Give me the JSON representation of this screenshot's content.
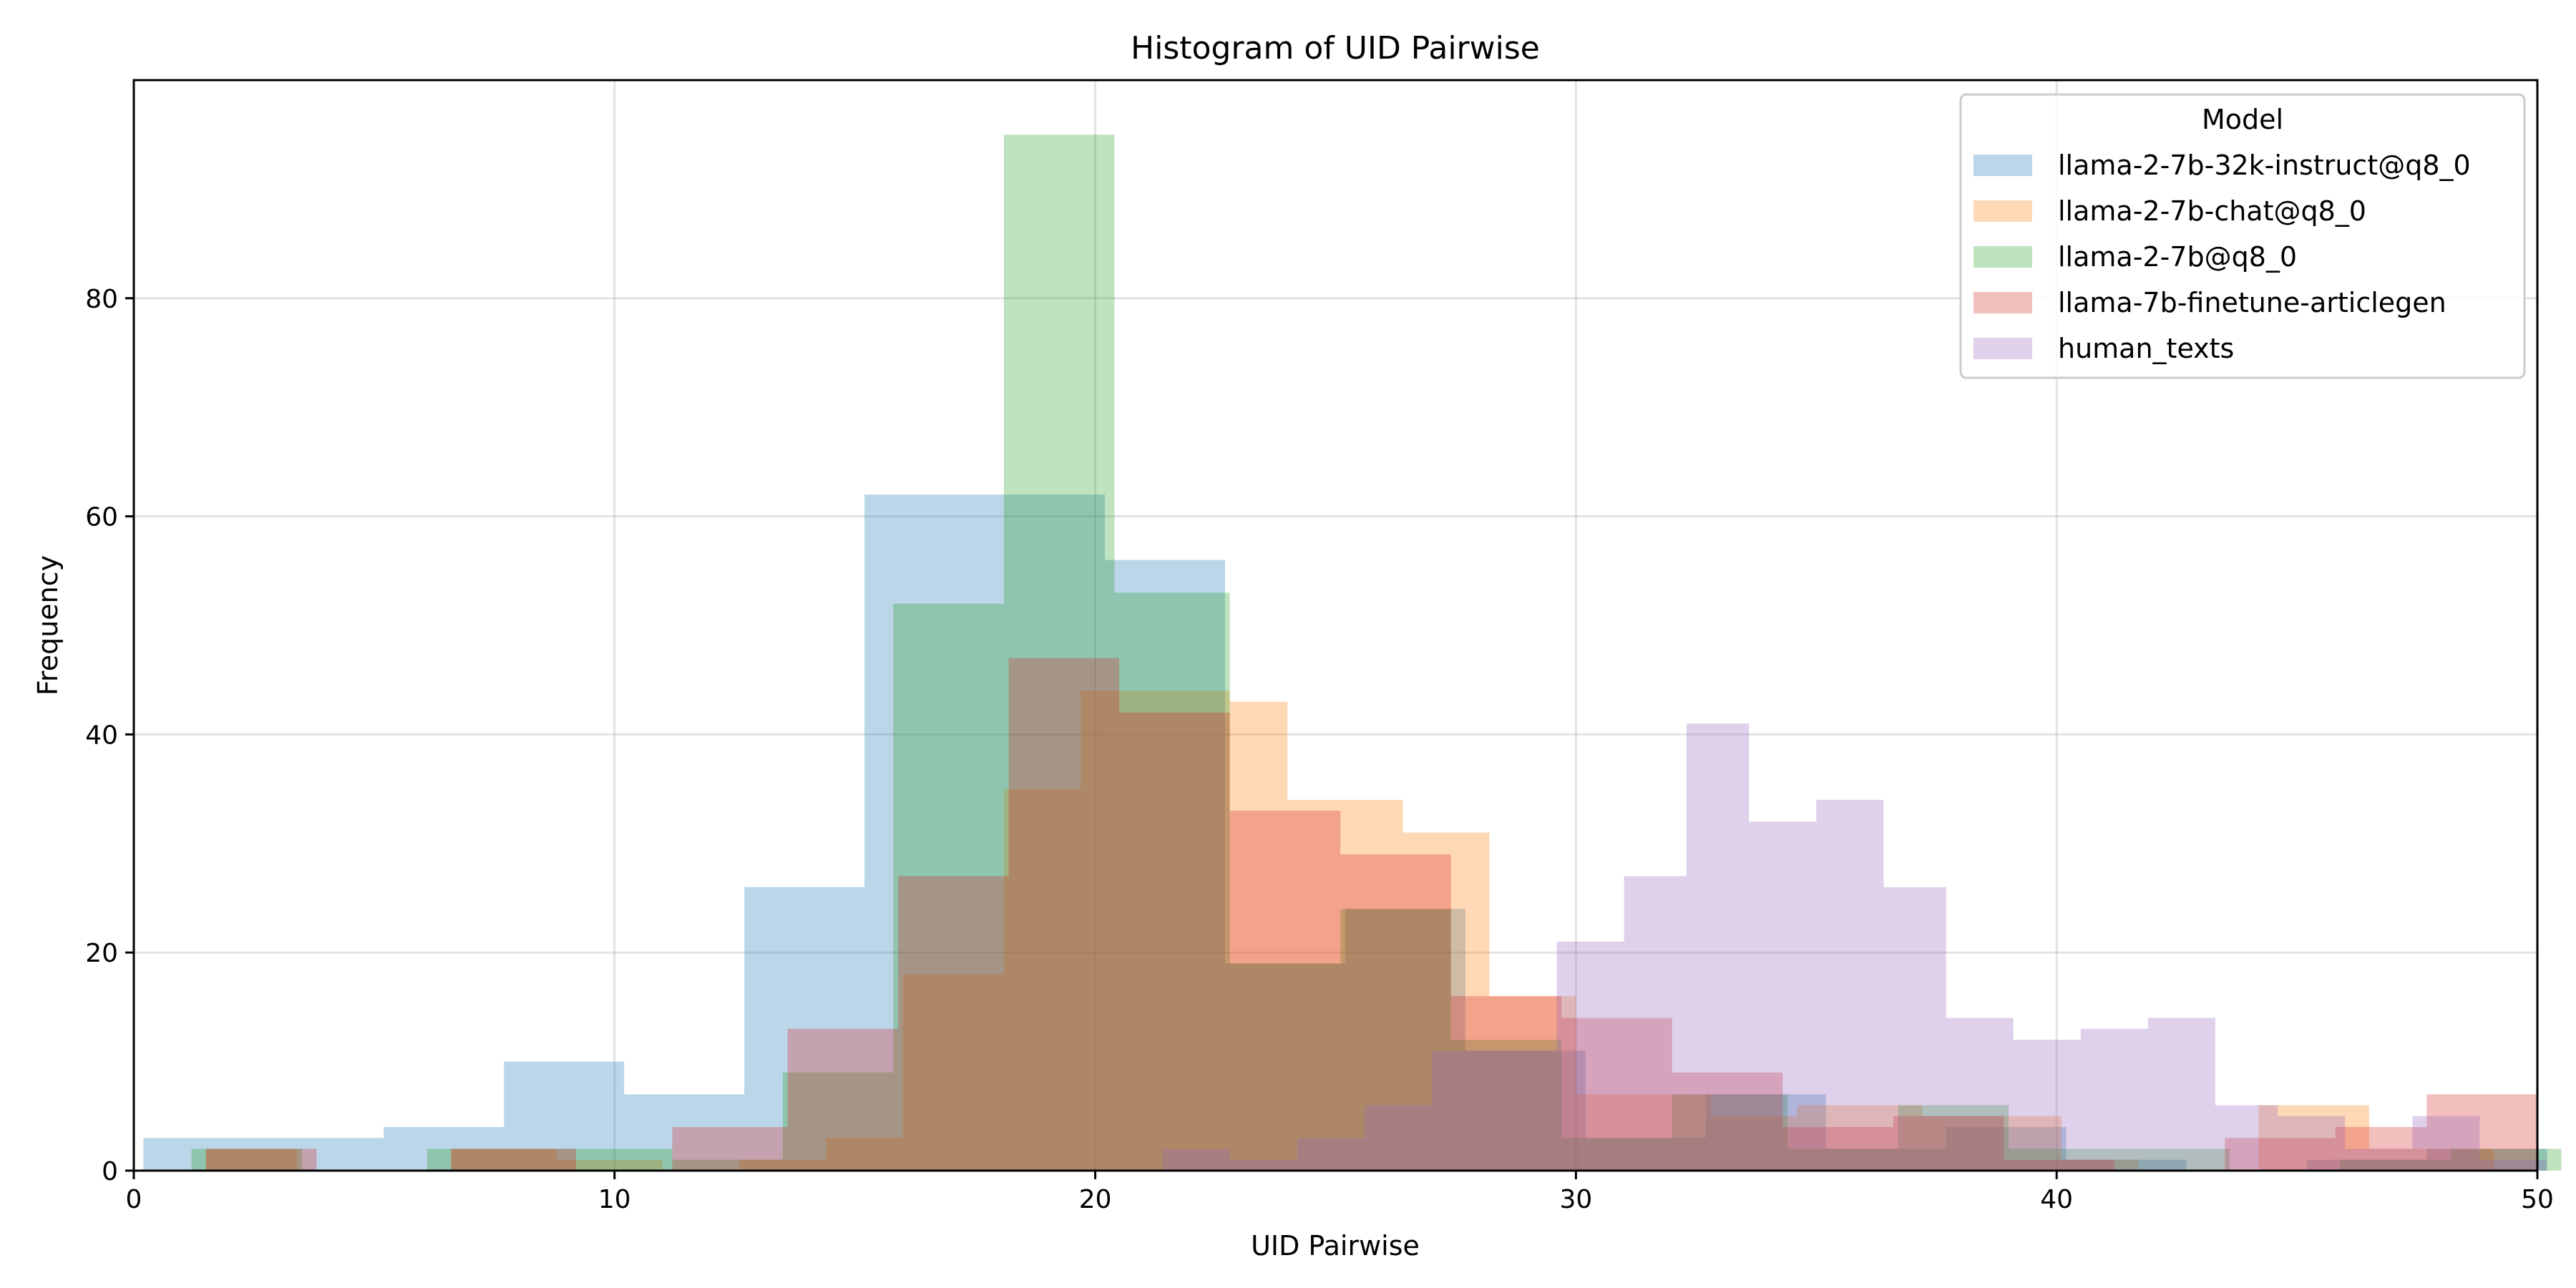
{
  "chart_data": {
    "type": "bar",
    "title": "Histogram of UID Pairwise",
    "xlabel": "UID Pairwise",
    "ylabel": "Frequency",
    "xlim": [
      0,
      50
    ],
    "ylim": [
      0,
      100
    ],
    "xticks": [
      0,
      10,
      20,
      30,
      40,
      50
    ],
    "yticks": [
      0,
      20,
      40,
      60,
      80
    ],
    "grid": true,
    "legend": {
      "title": "Model",
      "placement": "top-right"
    },
    "series": [
      {
        "name": "llama-2-7b-32k-instruct@q8_0",
        "color": "#1f77b4",
        "bins": [
          {
            "x0": 0.2,
            "x1": 2.7,
            "count": 3
          },
          {
            "x0": 2.7,
            "x1": 5.2,
            "count": 3
          },
          {
            "x0": 5.2,
            "x1": 7.7,
            "count": 4
          },
          {
            "x0": 7.7,
            "x1": 10.2,
            "count": 10
          },
          {
            "x0": 10.2,
            "x1": 12.7,
            "count": 7
          },
          {
            "x0": 12.7,
            "x1": 15.2,
            "count": 26
          },
          {
            "x0": 15.2,
            "x1": 17.7,
            "count": 62
          },
          {
            "x0": 17.7,
            "x1": 20.2,
            "count": 62
          },
          {
            "x0": 20.2,
            "x1": 22.7,
            "count": 56
          },
          {
            "x0": 22.7,
            "x1": 25.2,
            "count": 19
          },
          {
            "x0": 25.2,
            "x1": 27.7,
            "count": 24
          },
          {
            "x0": 27.7,
            "x1": 30.2,
            "count": 11
          },
          {
            "x0": 30.2,
            "x1": 32.7,
            "count": 3
          },
          {
            "x0": 32.7,
            "x1": 35.2,
            "count": 7
          },
          {
            "x0": 35.2,
            "x1": 37.7,
            "count": 2
          },
          {
            "x0": 37.7,
            "x1": 40.2,
            "count": 4
          },
          {
            "x0": 40.2,
            "x1": 42.7,
            "count": 1
          },
          {
            "x0": 42.7,
            "x1": 45.2,
            "count": 0
          },
          {
            "x0": 45.2,
            "x1": 47.7,
            "count": 1
          },
          {
            "x0": 47.7,
            "x1": 50.2,
            "count": 2
          }
        ]
      },
      {
        "name": "llama-2-7b-chat@q8_0",
        "color": "#ff7f0e",
        "bins": [
          {
            "x0": 1.5,
            "x1": 3.4,
            "count": 2
          },
          {
            "x0": 6.6,
            "x1": 8.8,
            "count": 2
          },
          {
            "x0": 8.8,
            "x1": 11.0,
            "count": 1
          },
          {
            "x0": 12.6,
            "x1": 14.4,
            "count": 1
          },
          {
            "x0": 14.4,
            "x1": 16.0,
            "count": 3
          },
          {
            "x0": 16.0,
            "x1": 18.1,
            "count": 18
          },
          {
            "x0": 18.1,
            "x1": 19.7,
            "count": 35
          },
          {
            "x0": 19.7,
            "x1": 22.8,
            "count": 44
          },
          {
            "x0": 22.8,
            "x1": 24.0,
            "count": 43
          },
          {
            "x0": 24.0,
            "x1": 26.4,
            "count": 34
          },
          {
            "x0": 26.4,
            "x1": 28.2,
            "count": 31
          },
          {
            "x0": 28.2,
            "x1": 30.0,
            "count": 16
          },
          {
            "x0": 30.0,
            "x1": 32.8,
            "count": 7
          },
          {
            "x0": 32.8,
            "x1": 34.6,
            "count": 5
          },
          {
            "x0": 34.6,
            "x1": 37.2,
            "count": 6
          },
          {
            "x0": 37.2,
            "x1": 40.1,
            "count": 5
          },
          {
            "x0": 40.1,
            "x1": 41.7,
            "count": 1
          },
          {
            "x0": 44.2,
            "x1": 46.5,
            "count": 6
          },
          {
            "x0": 46.5,
            "x1": 49.1,
            "count": 2
          }
        ]
      },
      {
        "name": "llama-2-7b@q8_0",
        "color": "#2ca02c",
        "bins": [
          {
            "x0": 1.2,
            "x1": 3.5,
            "count": 2
          },
          {
            "x0": 6.1,
            "x1": 8.9,
            "count": 2
          },
          {
            "x0": 8.9,
            "x1": 11.2,
            "count": 2
          },
          {
            "x0": 11.2,
            "x1": 13.5,
            "count": 1
          },
          {
            "x0": 13.5,
            "x1": 15.8,
            "count": 9
          },
          {
            "x0": 15.8,
            "x1": 18.1,
            "count": 52
          },
          {
            "x0": 18.1,
            "x1": 20.4,
            "count": 95
          },
          {
            "x0": 20.4,
            "x1": 22.8,
            "count": 53
          },
          {
            "x0": 22.8,
            "x1": 25.1,
            "count": 19
          },
          {
            "x0": 25.1,
            "x1": 27.4,
            "count": 24
          },
          {
            "x0": 27.4,
            "x1": 29.7,
            "count": 12
          },
          {
            "x0": 29.7,
            "x1": 32.0,
            "count": 3
          },
          {
            "x0": 32.0,
            "x1": 34.4,
            "count": 7
          },
          {
            "x0": 34.4,
            "x1": 36.7,
            "count": 2
          },
          {
            "x0": 36.7,
            "x1": 39.0,
            "count": 6
          },
          {
            "x0": 39.0,
            "x1": 41.3,
            "count": 2
          },
          {
            "x0": 41.3,
            "x1": 43.6,
            "count": 2
          },
          {
            "x0": 45.9,
            "x1": 48.2,
            "count": 1
          },
          {
            "x0": 48.2,
            "x1": 50.5,
            "count": 2
          }
        ]
      },
      {
        "name": "llama-7b-finetune-articlegen",
        "color": "#d62728",
        "bins": [
          {
            "x0": 1.5,
            "x1": 3.8,
            "count": 2
          },
          {
            "x0": 6.6,
            "x1": 9.2,
            "count": 2
          },
          {
            "x0": 11.2,
            "x1": 13.6,
            "count": 4
          },
          {
            "x0": 13.6,
            "x1": 15.9,
            "count": 13
          },
          {
            "x0": 15.9,
            "x1": 18.2,
            "count": 27
          },
          {
            "x0": 18.2,
            "x1": 20.5,
            "count": 47
          },
          {
            "x0": 20.5,
            "x1": 22.8,
            "count": 42
          },
          {
            "x0": 22.8,
            "x1": 25.1,
            "count": 33
          },
          {
            "x0": 25.1,
            "x1": 27.4,
            "count": 29
          },
          {
            "x0": 27.4,
            "x1": 29.7,
            "count": 16
          },
          {
            "x0": 29.7,
            "x1": 32.0,
            "count": 14
          },
          {
            "x0": 32.0,
            "x1": 34.3,
            "count": 9
          },
          {
            "x0": 34.3,
            "x1": 36.6,
            "count": 4
          },
          {
            "x0": 36.6,
            "x1": 38.9,
            "count": 5
          },
          {
            "x0": 38.9,
            "x1": 41.2,
            "count": 1
          },
          {
            "x0": 41.2,
            "x1": 43.5,
            "count": 0
          },
          {
            "x0": 43.5,
            "x1": 45.8,
            "count": 3
          },
          {
            "x0": 45.8,
            "x1": 47.7,
            "count": 4
          },
          {
            "x0": 47.7,
            "x1": 50.0,
            "count": 7
          }
        ]
      },
      {
        "name": "human_texts",
        "color": "#9467bd",
        "bins": [
          {
            "x0": 21.4,
            "x1": 22.8,
            "count": 2
          },
          {
            "x0": 22.8,
            "x1": 24.2,
            "count": 1
          },
          {
            "x0": 24.2,
            "x1": 25.6,
            "count": 3
          },
          {
            "x0": 25.6,
            "x1": 27.0,
            "count": 6
          },
          {
            "x0": 27.0,
            "x1": 29.6,
            "count": 11
          },
          {
            "x0": 29.6,
            "x1": 31.0,
            "count": 21
          },
          {
            "x0": 31.0,
            "x1": 32.3,
            "count": 27
          },
          {
            "x0": 32.3,
            "x1": 33.6,
            "count": 41
          },
          {
            "x0": 33.6,
            "x1": 35.0,
            "count": 32
          },
          {
            "x0": 35.0,
            "x1": 36.4,
            "count": 34
          },
          {
            "x0": 36.4,
            "x1": 37.7,
            "count": 26
          },
          {
            "x0": 37.7,
            "x1": 39.1,
            "count": 14
          },
          {
            "x0": 39.1,
            "x1": 40.5,
            "count": 12
          },
          {
            "x0": 40.5,
            "x1": 41.9,
            "count": 13
          },
          {
            "x0": 41.9,
            "x1": 43.3,
            "count": 14
          },
          {
            "x0": 43.3,
            "x1": 44.6,
            "count": 6
          },
          {
            "x0": 44.6,
            "x1": 46.0,
            "count": 5
          },
          {
            "x0": 46.0,
            "x1": 47.4,
            "count": 2
          },
          {
            "x0": 47.4,
            "x1": 48.8,
            "count": 5
          },
          {
            "x0": 48.8,
            "x1": 50.2,
            "count": 1
          }
        ]
      }
    ]
  }
}
